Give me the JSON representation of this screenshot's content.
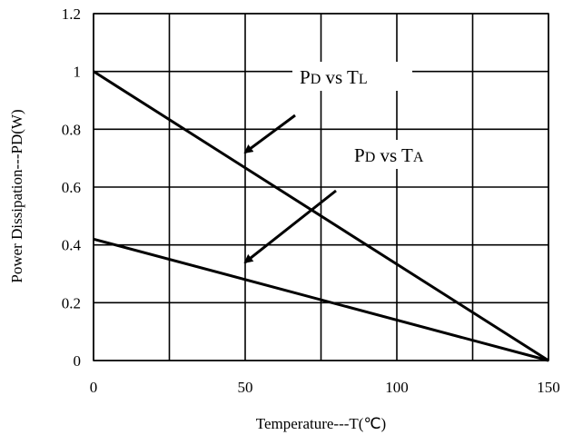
{
  "chart_data": {
    "type": "line",
    "xlabel": "Temperature---T(℃)",
    "ylabel": "Power Dissipation---PD(W)",
    "xlim": [
      0,
      150
    ],
    "ylim": [
      0,
      1.2
    ],
    "xticks": [
      "0",
      "50",
      "100",
      "150"
    ],
    "yticks": [
      "0",
      "0.2",
      "0.4",
      "0.6",
      "0.8",
      "1",
      "1.2"
    ],
    "x_gridlines": [
      0,
      25,
      50,
      75,
      100,
      125,
      150
    ],
    "y_gridlines": [
      0,
      0.2,
      0.4,
      0.6,
      0.8,
      1.0,
      1.2
    ],
    "grid": true,
    "series": [
      {
        "x": [
          0,
          150
        ],
        "y": [
          1.0,
          0
        ]
      },
      {
        "x": [
          0,
          150
        ],
        "y": [
          0.42,
          0
        ]
      }
    ],
    "annotations": [
      {
        "main1": "P",
        "sub1": "D",
        "mid": " vs ",
        "main2": "T",
        "sub2": "L",
        "points_to": [
          50,
          0.72
        ]
      },
      {
        "main1": "P",
        "sub1": "D",
        "mid": " vs ",
        "main2": "T",
        "sub2": "A",
        "points_to": [
          50,
          0.34
        ]
      }
    ],
    "line_color": "#000000"
  }
}
